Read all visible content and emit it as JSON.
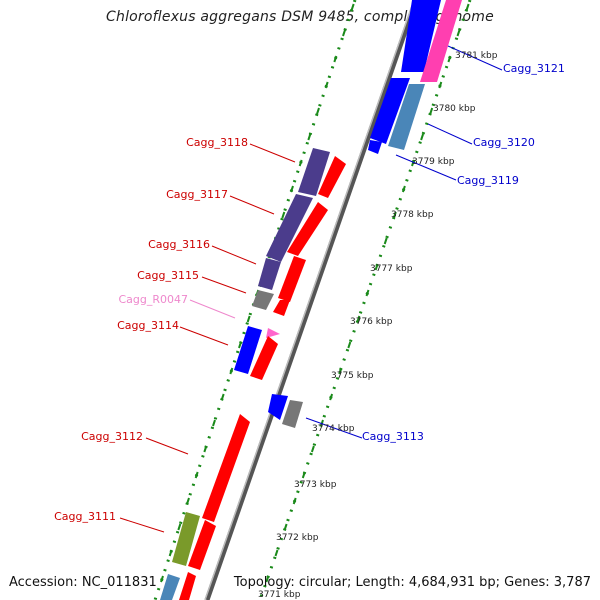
{
  "title": "Chloroflexus aggregans DSM 9485, complete genome",
  "footer": {
    "accession": "Accession: NC_011831",
    "summary": "Topology: circular; Length: 4,684,931 bp; Genes: 3,787"
  },
  "colors": {
    "forward_label": "#cc0000",
    "reverse_label": "#0000cc",
    "rna_label": "#ee88cc",
    "cds_red": "#ff0000",
    "cds_blue": "#0000ff",
    "cog_purple": "#4b3c8c",
    "cog_green": "#7a9a2a",
    "cog_gray": "#777777",
    "cog_steel": "#4a86b8",
    "cog_magenta": "#ff3fb0",
    "ruler_green": "#1a8a1a"
  },
  "ruler_labels": [
    "3781 kbp",
    "3780 kbp",
    "3779 kbp",
    "3778 kbp",
    "3777 kbp",
    "3776 kbp",
    "3775 kbp",
    "3774 kbp",
    "3773 kbp",
    "3772 kbp",
    "3771 kbp"
  ],
  "gene_labels": {
    "left": [
      "Cagg_3118",
      "Cagg_3117",
      "Cagg_3116",
      "Cagg_3115",
      "Cagg_R0047",
      "Cagg_3114",
      "Cagg_3112",
      "Cagg_3111"
    ],
    "right": [
      "Cagg_3121",
      "Cagg_3120",
      "Cagg_3119",
      "Cagg_3113"
    ]
  }
}
